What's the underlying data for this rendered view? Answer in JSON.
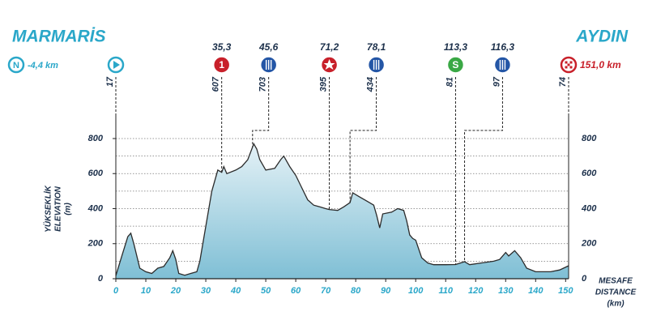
{
  "chart_data": {
    "type": "area",
    "start": {
      "name": "MARMARİS",
      "icon_text": "N",
      "distance": {
        "value": -4.4,
        "label": "-4,4 km"
      },
      "elevation": 17
    },
    "finish": {
      "name": "AYDIN",
      "distance": {
        "value": 151,
        "label": "151,0 km"
      },
      "elevation": 74
    },
    "points": [
      {
        "km": {
          "value": 35.3,
          "label": "35,3"
        },
        "elevation": 607,
        "icon": "climb",
        "icon_text": "1",
        "color": "#c8202a"
      },
      {
        "km": {
          "value": 45.6,
          "label": "45,6"
        },
        "elevation": 703,
        "icon": "feed",
        "color": "#2456a6"
      },
      {
        "km": {
          "value": 71.2,
          "label": "71,2"
        },
        "elevation": 395,
        "icon": "sprint",
        "color": "#c8202a"
      },
      {
        "km": {
          "value": 78.1,
          "label": "78,1"
        },
        "elevation": 434,
        "icon": "feed",
        "color": "#2456a6"
      },
      {
        "km": {
          "value": 113.3,
          "label": "113,3"
        },
        "elevation": 81,
        "icon": "climb",
        "icon_text": "S",
        "color": "#3aa845"
      },
      {
        "km": {
          "value": 116.3,
          "label": "116,3"
        },
        "elevation": 97,
        "icon": "feed",
        "color": "#2456a6"
      }
    ],
    "y_label": [
      "YÜKSEKLİK",
      "ELEVATION",
      "(m)"
    ],
    "x_label": [
      "MESAFE",
      "DISTANCE",
      "(km)"
    ],
    "x": [
      0,
      2,
      4,
      5,
      6,
      8,
      10,
      12,
      14,
      16,
      18,
      19,
      20,
      21,
      23,
      25,
      27,
      28,
      30,
      32,
      34,
      35.3,
      36,
      37,
      40,
      42,
      44,
      46,
      47,
      48,
      50,
      53,
      55,
      56,
      58,
      60,
      62,
      64,
      66,
      68,
      70,
      71.2,
      74,
      76,
      78.1,
      79,
      81,
      84,
      86,
      87,
      88,
      89,
      92,
      94,
      96,
      97,
      98,
      99,
      100,
      102,
      104,
      106,
      110,
      113.3,
      116.3,
      118,
      122,
      126,
      128,
      130,
      131,
      133,
      135,
      137,
      140,
      145,
      148,
      151
    ],
    "values": [
      17,
      130,
      240,
      260,
      200,
      60,
      40,
      30,
      60,
      70,
      120,
      160,
      110,
      30,
      20,
      30,
      40,
      100,
      300,
      500,
      620,
      607,
      640,
      600,
      620,
      640,
      680,
      770,
      740,
      680,
      620,
      630,
      680,
      700,
      640,
      590,
      520,
      450,
      420,
      410,
      400,
      395,
      390,
      410,
      434,
      490,
      470,
      440,
      420,
      360,
      290,
      370,
      380,
      400,
      390,
      330,
      250,
      230,
      220,
      120,
      90,
      80,
      80,
      81,
      97,
      80,
      90,
      100,
      110,
      150,
      130,
      160,
      120,
      60,
      40,
      40,
      50,
      74
    ],
    "color": "#8cc6da",
    "xlim": [
      0,
      151
    ],
    "ylim": [
      0,
      800
    ],
    "xticks": [
      0,
      10,
      20,
      30,
      40,
      50,
      60,
      70,
      80,
      90,
      100,
      110,
      120,
      130,
      140,
      150
    ],
    "yticks": [
      0,
      200,
      400,
      600,
      800
    ],
    "ygrid": [
      100,
      200,
      300,
      400,
      500,
      600,
      700,
      800
    ]
  }
}
